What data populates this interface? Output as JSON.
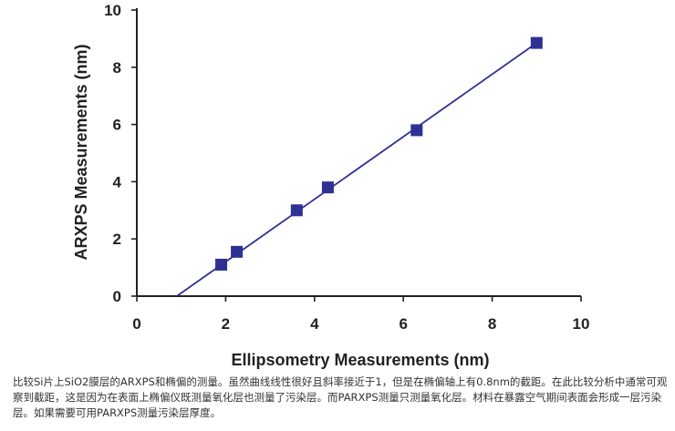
{
  "chart_data": {
    "type": "scatter",
    "xlabel": "Ellipsometry Measurements (nm)",
    "ylabel": "ARXPS Measurements (nm)",
    "xlim": [
      0,
      10
    ],
    "ylim": [
      0,
      10
    ],
    "x_ticks": [
      "0",
      "2",
      "4",
      "6",
      "8",
      "10"
    ],
    "y_ticks": [
      "0",
      "2",
      "4",
      "6",
      "8",
      "10"
    ],
    "grid": false,
    "legend": "none",
    "series": [
      {
        "points": [
          {
            "x": 1.9,
            "y": 1.1
          },
          {
            "x": 2.25,
            "y": 1.55
          },
          {
            "x": 3.6,
            "y": 3.0
          },
          {
            "x": 4.3,
            "y": 3.8
          },
          {
            "x": 6.3,
            "y": 5.8
          },
          {
            "x": 9.0,
            "y": 8.85
          }
        ],
        "color": "#2e3192"
      }
    ],
    "fit_line": {
      "from": {
        "x": 0.9,
        "y": 0
      },
      "to": {
        "x": 9.0,
        "y": 8.85
      },
      "color": "#2e3192"
    },
    "axis_color": "#222222"
  },
  "caption": "比较Si片上SiO2膜层的ARXPS和椭偏的测量。虽然曲线线性很好且斜率接近于1，但是在椭偏轴上有0.8nm的截距。在此比较分析中通常可观察到截距，这是因为在表面上椭偏仪既测量氧化层也测量了污染层。而PARXPS测量只测量氧化层。材料在暴露空气期间表面会形成一层污染层。如果需要可用PARXPS测量污染层厚度。"
}
